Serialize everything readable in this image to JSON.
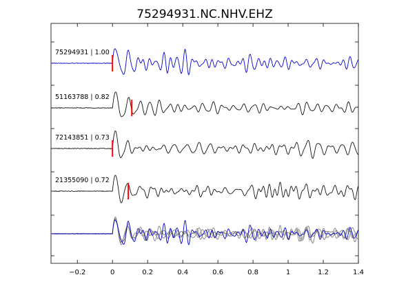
{
  "chart_data": {
    "type": "line",
    "title": "75294931.NC.NHV.EHZ",
    "xlabel": "",
    "ylabel": "",
    "xlim": [
      -0.35,
      1.4
    ],
    "x_ticks": [
      -0.2,
      0,
      0.2,
      0.4,
      0.6,
      0.8,
      1,
      1.2,
      1.4
    ],
    "x_tick_labels": [
      "−0.2",
      "0",
      "0.2",
      "0.4",
      "0.6",
      "0.8",
      "1",
      "1.2",
      "1.4"
    ],
    "grid": false,
    "legend": "none",
    "colors": {
      "template": "#0000cc",
      "match": "#111111",
      "overlay": "#7f7f7f",
      "pick": "#ff0000"
    },
    "series": [
      {
        "name": "75294931 | 1.00",
        "event_id": "75294931",
        "cc": 1.0,
        "role": "template",
        "pick_time": 0.0,
        "seed": 1
      },
      {
        "name": "51163788 | 0.82",
        "event_id": "51163788",
        "cc": 0.82,
        "role": "match",
        "pick_time": 0.11,
        "seed": 2
      },
      {
        "name": "72143851 | 0.73",
        "event_id": "72143851",
        "cc": 0.73,
        "role": "match",
        "pick_time": 0.0,
        "seed": 3
      },
      {
        "name": "21355090 | 0.72",
        "event_id": "21355090",
        "cc": 0.72,
        "role": "match",
        "pick_time": 0.09,
        "seed": 4
      }
    ]
  }
}
